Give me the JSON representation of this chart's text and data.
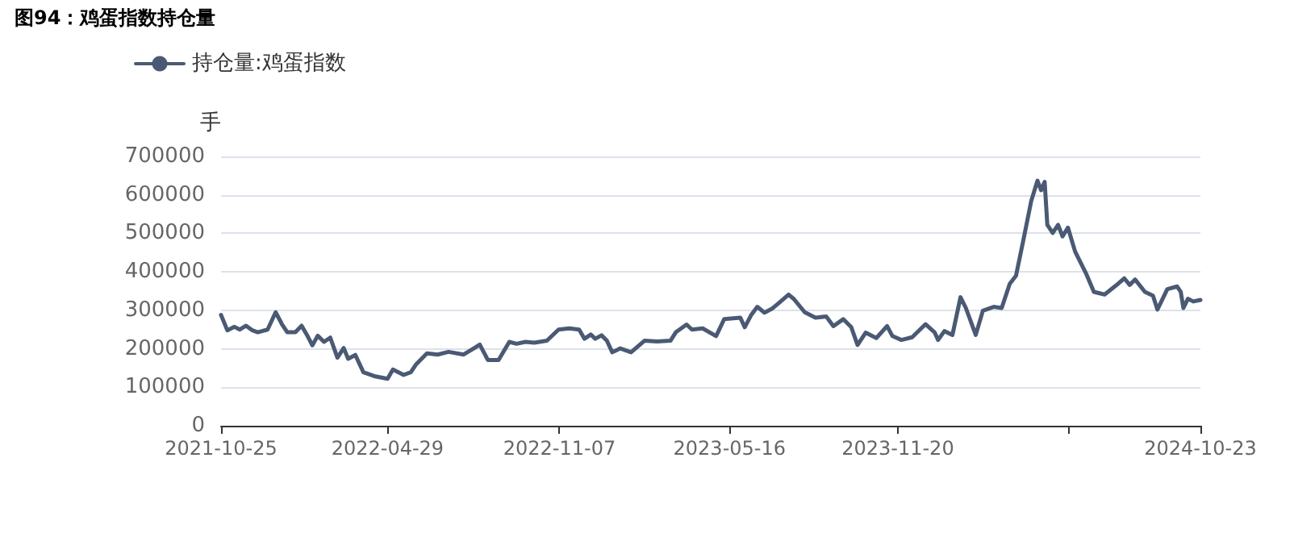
{
  "chart_data": {
    "type": "line",
    "title": "图94：鸡蛋指数持仓量",
    "ylabel": "手",
    "xlim": [
      "2021-10-25",
      "2024-10-23"
    ],
    "xticks": [
      "2021-10-25",
      "2022-04-29",
      "2022-11-07",
      "2023-05-16",
      "2023-11-20",
      {
        "value": "2024-05-29",
        "label": null
      },
      "2024-10-23"
    ],
    "ylim": [
      0,
      700000
    ],
    "yticks": [
      0,
      100000,
      200000,
      300000,
      400000,
      500000,
      600000,
      700000
    ],
    "grid": "y",
    "legend": "top left",
    "series": [
      {
        "name": "持仓量:鸡蛋指数",
        "color": "#4a5a74",
        "x": [
          "2021-10-25",
          "2021-11-01",
          "2021-11-09",
          "2021-11-15",
          "2021-11-22",
          "2021-11-29",
          "2021-12-05",
          "2021-12-16",
          "2021-12-25",
          "2022-01-01",
          "2022-01-07",
          "2022-01-16",
          "2022-01-23",
          "2022-01-29",
          "2022-02-04",
          "2022-02-10",
          "2022-02-17",
          "2022-02-24",
          "2022-03-04",
          "2022-03-11",
          "2022-03-16",
          "2022-03-24",
          "2022-04-02",
          "2022-04-14",
          "2022-04-29",
          "2022-05-05",
          "2022-05-17",
          "2022-05-25",
          "2022-05-31",
          "2022-06-12",
          "2022-06-24",
          "2022-07-06",
          "2022-07-23",
          "2022-08-04",
          "2022-08-10",
          "2022-08-19",
          "2022-08-31",
          "2022-09-12",
          "2022-09-20",
          "2022-09-30",
          "2022-10-10",
          "2022-10-24",
          "2022-11-06",
          "2022-11-18",
          "2022-11-29",
          "2022-12-05",
          "2022-12-12",
          "2022-12-17",
          "2022-12-24",
          "2022-12-30",
          "2023-01-05",
          "2023-01-14",
          "2023-01-26",
          "2023-02-10",
          "2023-02-24",
          "2023-03-11",
          "2023-03-17",
          "2023-03-29",
          "2023-04-04",
          "2023-04-16",
          "2023-05-01",
          "2023-05-10",
          "2023-05-28",
          "2023-06-02",
          "2023-06-09",
          "2023-06-16",
          "2023-06-24",
          "2023-07-03",
          "2023-07-10",
          "2023-07-21",
          "2023-07-27",
          "2023-08-08",
          "2023-08-20",
          "2023-09-01",
          "2023-09-09",
          "2023-09-20",
          "2023-09-29",
          "2023-10-06",
          "2023-10-15",
          "2023-10-27",
          "2023-11-08",
          "2023-11-14",
          "2023-11-24",
          "2023-12-06",
          "2023-12-21",
          "2023-12-31",
          "2024-01-04",
          "2024-01-11",
          "2024-01-20",
          "2024-01-29",
          "2024-02-04",
          "2024-02-15",
          "2024-02-23",
          "2024-03-06",
          "2024-03-15",
          "2024-03-24",
          "2024-03-31",
          "2024-04-08",
          "2024-04-17",
          "2024-04-24",
          "2024-04-28",
          "2024-05-02",
          "2024-05-05",
          "2024-05-11",
          "2024-05-17",
          "2024-05-22",
          "2024-05-28",
          "2024-06-05",
          "2024-06-17",
          "2024-06-26",
          "2024-07-08",
          "2024-07-23",
          "2024-07-30",
          "2024-08-05",
          "2024-08-11",
          "2024-08-22",
          "2024-08-31",
          "2024-09-05",
          "2024-09-16",
          "2024-09-27",
          "2024-10-01",
          "2024-10-04",
          "2024-10-09",
          "2024-10-15",
          "2024-10-23"
        ],
        "values": [
          288000,
          248000,
          257000,
          250000,
          260000,
          248000,
          243000,
          250000,
          295000,
          264000,
          243000,
          243000,
          260000,
          236000,
          209000,
          234000,
          218000,
          229000,
          177000,
          202000,
          174000,
          184000,
          139000,
          129000,
          122000,
          146000,
          132000,
          139000,
          160000,
          188000,
          185000,
          192000,
          185000,
          202000,
          211000,
          171000,
          171000,
          218000,
          213000,
          218000,
          216000,
          221000,
          250000,
          253000,
          250000,
          226000,
          237000,
          226000,
          235000,
          221000,
          191000,
          201000,
          191000,
          221000,
          219000,
          221000,
          243000,
          263000,
          250000,
          253000,
          233000,
          277000,
          281000,
          256000,
          287000,
          309000,
          294000,
          305000,
          319000,
          341000,
          329000,
          295000,
          281000,
          284000,
          259000,
          277000,
          256000,
          210000,
          242000,
          228000,
          259000,
          233000,
          223000,
          230000,
          264000,
          243000,
          223000,
          246000,
          236000,
          334000,
          306000,
          236000,
          299000,
          309000,
          306000,
          369000,
          390000,
          480000,
          584000,
          637000,
          612000,
          634000,
          522000,
          501000,
          522000,
          492000,
          515000,
          453000,
          397000,
          348000,
          341000,
          369000,
          383000,
          366000,
          380000,
          348000,
          338000,
          302000,
          355000,
          362000,
          348000,
          306000,
          330000,
          323000,
          327000
        ]
      }
    ]
  }
}
